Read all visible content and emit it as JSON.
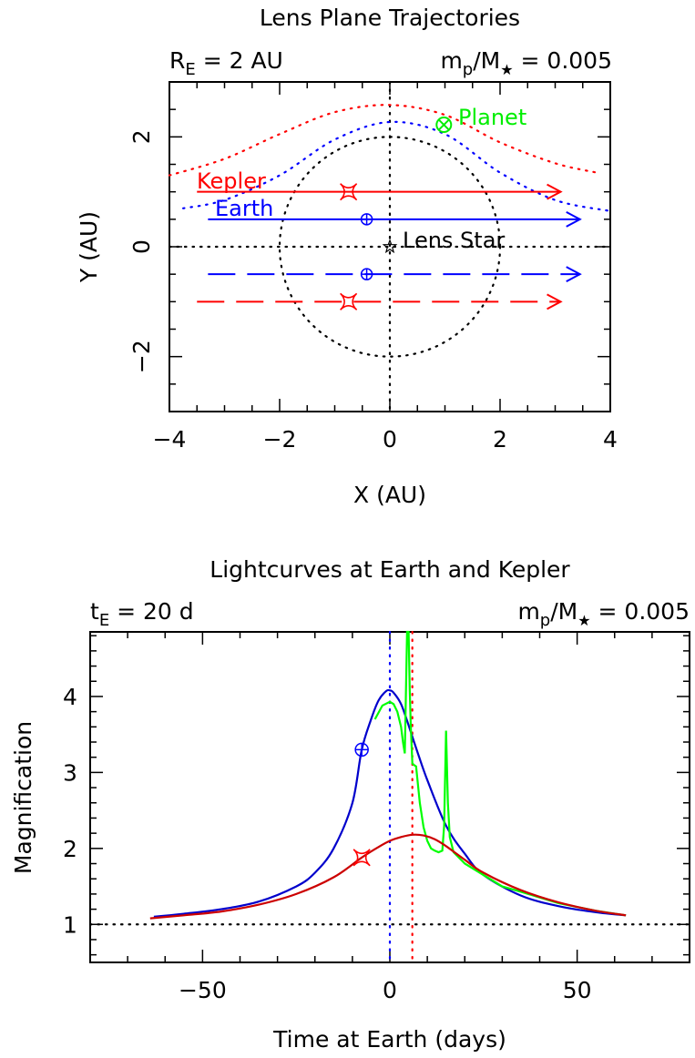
{
  "chart_data": [
    {
      "type": "line",
      "title": "Lens Plane Trajectories",
      "subtitle_left": "R_E = 2 AU",
      "subtitle_left_main": "R",
      "subtitle_left_sub": "E",
      "subtitle_left_rest": " = 2 AU",
      "subtitle_right": "m_p/M★ = 0.005",
      "subtitle_right_a": "m",
      "subtitle_right_sub": "p",
      "subtitle_right_b": "/M",
      "subtitle_right_star": "★",
      "subtitle_right_c": " = 0.005",
      "xlabel": "X (AU)",
      "ylabel": "Y (AU)",
      "xlim": [
        -4,
        4
      ],
      "ylim": [
        -3,
        3
      ],
      "xticks": [
        "−4",
        "−2",
        "0",
        "2",
        "4"
      ],
      "yticks": [
        "−2",
        "0",
        "2"
      ],
      "annotations": {
        "kepler": "Kepler",
        "earth": "Earth",
        "lens_star": "Lens Star",
        "planet": "Planet"
      },
      "einstein_ring_radius": 2,
      "planet_position": [
        0.98,
        2.22
      ],
      "series": [
        {
          "name": "Kepler",
          "color": "#ff0000",
          "y_solid": 1,
          "y_dashed": -1,
          "x_start": -3.5,
          "x_end": 3.1,
          "marker_x": -0.75
        },
        {
          "name": "Earth",
          "color": "#0000ff",
          "y_solid": 0.5,
          "y_dashed": -0.5,
          "x_start": -3.3,
          "x_end": 3.45,
          "marker_x": -0.42
        }
      ],
      "dotted_curves": {
        "red": {
          "x": [
            -4,
            -3,
            -2,
            -1,
            0,
            1,
            2,
            3,
            3.75
          ],
          "y": [
            1.3,
            1.6,
            2.05,
            2.45,
            2.58,
            2.4,
            1.9,
            1.52,
            1.35
          ]
        },
        "blue": {
          "x": [
            -3.75,
            -3,
            -2,
            -1,
            0,
            1,
            2,
            3,
            4
          ],
          "y": [
            0.7,
            0.85,
            1.3,
            1.95,
            2.27,
            2.05,
            1.35,
            0.85,
            0.65
          ]
        }
      }
    },
    {
      "type": "line",
      "title": "Lightcurves at Earth and Kepler",
      "subtitle_left": "t_E = 20 d",
      "subtitle_left_main": "t",
      "subtitle_left_sub": "E",
      "subtitle_left_rest": " = 20 d",
      "subtitle_right": "m_p/M★ = 0.005",
      "subtitle_right_a": "m",
      "subtitle_right_sub": "p",
      "subtitle_right_b": "/M",
      "subtitle_right_star": "★",
      "subtitle_right_c": " = 0.005",
      "xlabel": "Time at Earth (days)",
      "ylabel": "Magnification",
      "xlim": [
        -80,
        80
      ],
      "ylim": [
        0.5,
        4.85
      ],
      "xticks": [
        "−50",
        "0",
        "50"
      ],
      "yticks": [
        "1",
        "2",
        "3",
        "4"
      ],
      "baseline": 1,
      "earth_peak_time": 0,
      "kepler_peak_time": 6,
      "earth_marker": [
        -7.5,
        3.3
      ],
      "kepler_marker": [
        -7.5,
        1.88
      ],
      "series": [
        {
          "name": "Earth",
          "color": "#0000cc",
          "x": [
            -63,
            -55,
            -45,
            -35,
            -25,
            -20,
            -15,
            -10,
            -7.5,
            -5,
            -3,
            -1,
            0,
            1,
            3,
            5,
            7.5,
            10,
            15,
            20,
            25,
            35,
            45,
            55,
            63
          ],
          "y": [
            1.1,
            1.14,
            1.2,
            1.3,
            1.5,
            1.68,
            2.0,
            2.6,
            3.3,
            3.7,
            3.95,
            4.07,
            4.08,
            4.05,
            3.9,
            3.62,
            3.25,
            2.9,
            2.3,
            1.93,
            1.65,
            1.38,
            1.24,
            1.16,
            1.12
          ]
        },
        {
          "name": "Kepler",
          "color": "#cc0000",
          "x": [
            -64,
            -55,
            -45,
            -35,
            -25,
            -15,
            -7.5,
            -3,
            0,
            3,
            6,
            9,
            12,
            15,
            20,
            25,
            35,
            45,
            55,
            63
          ],
          "y": [
            1.08,
            1.12,
            1.17,
            1.26,
            1.4,
            1.62,
            1.88,
            2.02,
            2.1,
            2.15,
            2.18,
            2.17,
            2.12,
            2.03,
            1.85,
            1.68,
            1.45,
            1.29,
            1.18,
            1.12
          ]
        },
        {
          "name": "Planet",
          "color": "#00ff00",
          "x": [
            -4,
            -2,
            0,
            1,
            2,
            3,
            3.5,
            4,
            4.6,
            5.0,
            5.3,
            5.6,
            6.0,
            6.4,
            7,
            8,
            9,
            10,
            11,
            12,
            13,
            14,
            14.5,
            15.0,
            15.5,
            16,
            17,
            20,
            25,
            30,
            35,
            45,
            55,
            63
          ],
          "y": [
            3.7,
            3.88,
            3.93,
            3.9,
            3.8,
            3.6,
            3.4,
            3.25,
            4.85,
            4.85,
            4.1,
            3.6,
            3.12,
            3.1,
            3.08,
            2.6,
            2.28,
            2.1,
            2.0,
            1.97,
            1.95,
            1.97,
            2.3,
            3.55,
            2.6,
            2.15,
            1.95,
            1.8,
            1.65,
            1.5,
            1.43,
            1.28,
            1.18,
            1.12
          ]
        }
      ]
    }
  ]
}
